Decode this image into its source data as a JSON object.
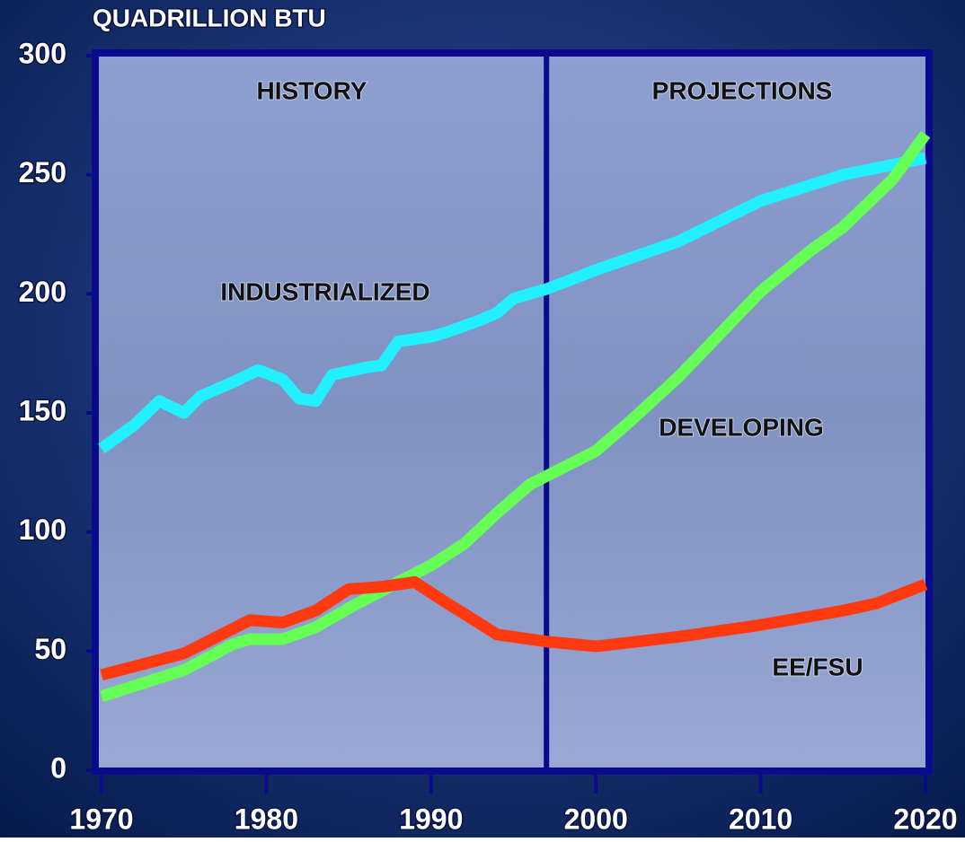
{
  "chart_data": {
    "type": "line",
    "title": "QUADRILLION BTU",
    "annotations": [
      "HISTORY",
      "PROJECTIONS"
    ],
    "divider": 1997,
    "xlim": [
      1970,
      2020
    ],
    "xticks": [
      1970,
      1980,
      1990,
      2000,
      2010,
      2020
    ],
    "ylim": [
      0,
      300
    ],
    "yticks": [
      0,
      50,
      100,
      150,
      200,
      250,
      300
    ],
    "series": [
      {
        "name": "INDUSTRIALIZED",
        "color": "#22f0ff",
        "x": [
          1970,
          1972,
          1973.5,
          1975,
          1976,
          1978,
          1979.5,
          1981,
          1982,
          1983,
          1984,
          1986,
          1987,
          1988,
          1990,
          1991,
          1993,
          1994,
          1995,
          1997,
          2000,
          2005,
          2010,
          2015,
          2020
        ],
        "values": [
          135,
          145,
          155,
          150,
          157,
          163,
          168,
          164,
          156,
          155,
          166,
          169,
          170,
          180,
          182,
          184,
          189,
          192,
          198,
          202,
          210,
          222,
          239,
          250,
          257
        ]
      },
      {
        "name": "DEVELOPING",
        "color": "#66ff55",
        "x": [
          1970,
          1975,
          1978,
          1979,
          1981,
          1983,
          1985,
          1988,
          1990,
          1992,
          1994,
          1996,
          1998,
          2000,
          2002,
          2005,
          2010,
          2013,
          2015,
          2018,
          2020
        ],
        "values": [
          31,
          42,
          53,
          55,
          55,
          60,
          68,
          79,
          86,
          95,
          108,
          120,
          127,
          134,
          146,
          165,
          201,
          218,
          228,
          248,
          267
        ]
      },
      {
        "name": "EE/FSU",
        "color": "#ff3a10",
        "x": [
          1970,
          1975,
          1977,
          1979,
          1981,
          1983,
          1985,
          1987,
          1989,
          1991,
          1994,
          1997,
          2000,
          2005,
          2010,
          2015,
          2017,
          2020
        ],
        "values": [
          40,
          49,
          56,
          63,
          62,
          67,
          76,
          77,
          79,
          70,
          57,
          54,
          52,
          56,
          61,
          67,
          70,
          78
        ]
      }
    ]
  }
}
